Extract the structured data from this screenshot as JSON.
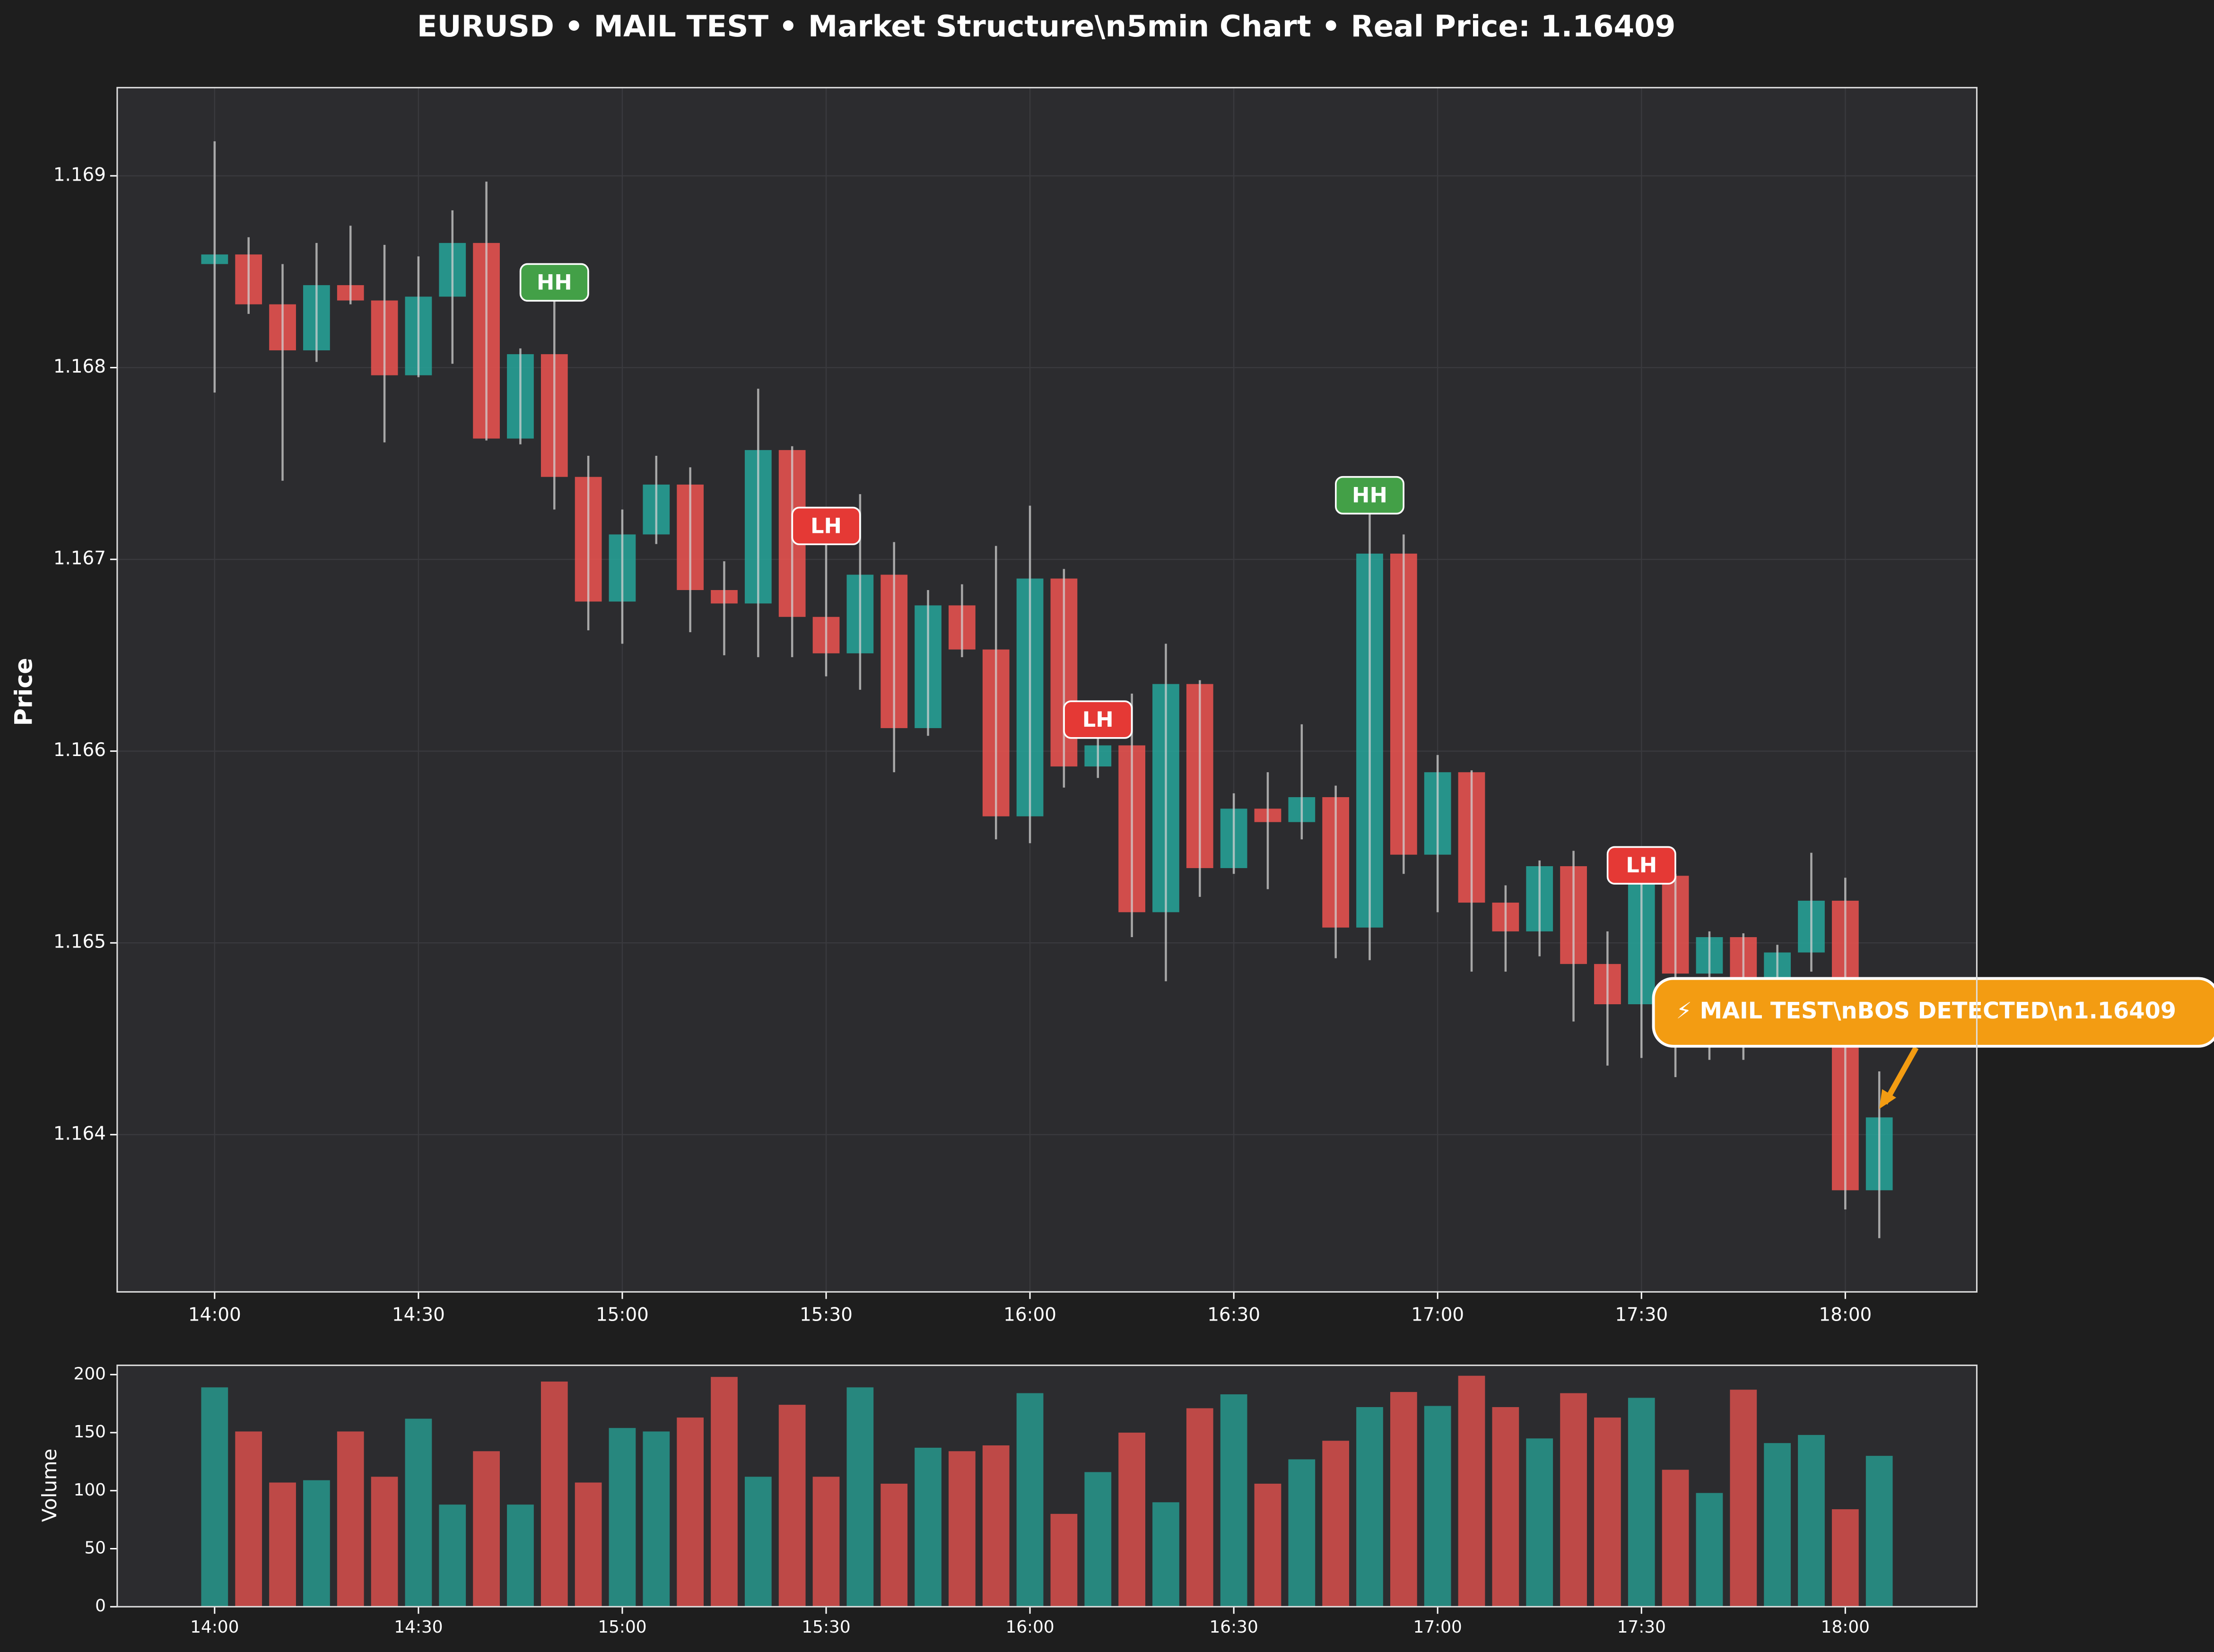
{
  "chart_data": [
    {
      "type": "candlestick",
      "title": "EURUSD • MAIL TEST • Market Structure\\n5min Chart • Real Price: 1.16409",
      "ylabel": "Price",
      "categories": [
        "14:00",
        null,
        null,
        null,
        null,
        null,
        "14:30",
        null,
        null,
        null,
        null,
        null,
        "15:00",
        null,
        null,
        null,
        null,
        null,
        "15:30",
        null,
        null,
        null,
        null,
        null,
        "16:00",
        null,
        null,
        null,
        null,
        null,
        "16:30",
        null,
        null,
        null,
        null,
        null,
        "17:00",
        null,
        null,
        null,
        null,
        null,
        "17:30",
        null,
        null,
        null,
        null,
        null,
        "18:00",
        null
      ],
      "open": [
        1.16854,
        1.16859,
        1.16833,
        1.16809,
        1.16843,
        1.16835,
        1.16796,
        1.16837,
        1.16865,
        1.16763,
        1.16807,
        1.16743,
        1.16678,
        1.16713,
        1.16739,
        1.16684,
        1.16677,
        1.16757,
        1.1667,
        1.16651,
        1.16692,
        1.16612,
        1.16676,
        1.16653,
        1.16566,
        1.1669,
        1.16592,
        1.16603,
        1.16516,
        1.16635,
        1.16539,
        1.1657,
        1.16563,
        1.16576,
        1.16508,
        1.16703,
        1.16546,
        1.16589,
        1.16521,
        1.16506,
        1.1654,
        1.16489,
        1.16468,
        1.16535,
        1.16484,
        1.16503,
        1.16475,
        1.16495,
        1.16522,
        1.16371
      ],
      "high": [
        1.16918,
        1.16868,
        1.16854,
        1.16865,
        1.16874,
        1.16864,
        1.16858,
        1.16882,
        1.16897,
        1.1681,
        1.16854,
        1.16754,
        1.16726,
        1.16754,
        1.16748,
        1.16699,
        1.16789,
        1.16759,
        1.16727,
        1.16734,
        1.16709,
        1.16684,
        1.16687,
        1.16707,
        1.16728,
        1.16695,
        1.16626,
        1.1663,
        1.16656,
        1.16637,
        1.16578,
        1.16589,
        1.16614,
        1.16582,
        1.16743,
        1.16713,
        1.16598,
        1.1659,
        1.1653,
        1.16543,
        1.16548,
        1.16506,
        1.1655,
        1.16536,
        1.16506,
        1.16505,
        1.16499,
        1.16547,
        1.16534,
        1.16433
      ],
      "low": [
        1.16787,
        1.16828,
        1.16741,
        1.16803,
        1.16833,
        1.16761,
        1.16795,
        1.16802,
        1.16762,
        1.1676,
        1.16726,
        1.16663,
        1.16656,
        1.16708,
        1.16662,
        1.1665,
        1.16649,
        1.16649,
        1.16639,
        1.16632,
        1.16589,
        1.16608,
        1.16649,
        1.16554,
        1.16552,
        1.16581,
        1.16586,
        1.16503,
        1.1648,
        1.16524,
        1.16536,
        1.16528,
        1.16554,
        1.16492,
        1.16491,
        1.16536,
        1.16516,
        1.16485,
        1.16485,
        1.16493,
        1.16459,
        1.16436,
        1.1644,
        1.1643,
        1.16439,
        1.16439,
        1.16465,
        1.16485,
        1.16361,
        1.16346
      ],
      "close": [
        1.16859,
        1.16833,
        1.16809,
        1.16843,
        1.16835,
        1.16796,
        1.16837,
        1.16865,
        1.16763,
        1.16807,
        1.16743,
        1.16678,
        1.16713,
        1.16739,
        1.16684,
        1.16677,
        1.16757,
        1.1667,
        1.16651,
        1.16692,
        1.16612,
        1.16676,
        1.16653,
        1.16566,
        1.1669,
        1.16592,
        1.16603,
        1.16516,
        1.16635,
        1.16539,
        1.1657,
        1.16563,
        1.16576,
        1.16508,
        1.16703,
        1.16546,
        1.16589,
        1.16521,
        1.16506,
        1.1654,
        1.16489,
        1.16468,
        1.16535,
        1.16484,
        1.16503,
        1.16475,
        1.16495,
        1.16522,
        1.16371,
        1.16409
      ],
      "up_color": "#26a69a",
      "down_color": "#ef5350",
      "ylim": [
        1.16318,
        1.16946
      ],
      "yticks": [
        1.164,
        1.165,
        1.166,
        1.167,
        1.168,
        1.169
      ],
      "grid": true,
      "annotations": [
        {
          "text": "HH",
          "at": 10,
          "color": "#43a047"
        },
        {
          "text": "LH",
          "at": 18,
          "color": "#e53935"
        },
        {
          "text": "LH",
          "at": 26,
          "color": "#e53935"
        },
        {
          "text": "HH",
          "at": 34,
          "color": "#43a047"
        },
        {
          "text": "LH",
          "at": 42,
          "color": "#e53935"
        }
      ],
      "callout": {
        "text": "⚡ MAIL TEST\\nBOS DETECTED\\n1.16409",
        "at": 49,
        "color": "#f39c12"
      }
    },
    {
      "type": "bar",
      "ylabel": "Volume",
      "categories": [
        "14:00",
        null,
        null,
        null,
        null,
        null,
        "14:30",
        null,
        null,
        null,
        null,
        null,
        "15:00",
        null,
        null,
        null,
        null,
        null,
        "15:30",
        null,
        null,
        null,
        null,
        null,
        "16:00",
        null,
        null,
        null,
        null,
        null,
        "16:30",
        null,
        null,
        null,
        null,
        null,
        "17:00",
        null,
        null,
        null,
        null,
        null,
        "17:30",
        null,
        null,
        null,
        null,
        null,
        "18:00",
        null
      ],
      "values": [
        189,
        151,
        107,
        109,
        151,
        112,
        162,
        88,
        134,
        88,
        194,
        107,
        154,
        151,
        163,
        198,
        112,
        174,
        112,
        189,
        106,
        137,
        134,
        139,
        184,
        80,
        116,
        150,
        90,
        171,
        183,
        106,
        127,
        143,
        172,
        185,
        173,
        199,
        172,
        145,
        184,
        163,
        180,
        118,
        98,
        187,
        141,
        148,
        84,
        130
      ],
      "colors": [
        "#26a69a",
        "#ef5350",
        "#ef5350",
        "#26a69a",
        "#ef5350",
        "#ef5350",
        "#26a69a",
        "#26a69a",
        "#ef5350",
        "#26a69a",
        "#ef5350",
        "#ef5350",
        "#26a69a",
        "#26a69a",
        "#ef5350",
        "#ef5350",
        "#26a69a",
        "#ef5350",
        "#ef5350",
        "#26a69a",
        "#ef5350",
        "#26a69a",
        "#ef5350",
        "#ef5350",
        "#26a69a",
        "#ef5350",
        "#26a69a",
        "#ef5350",
        "#26a69a",
        "#ef5350",
        "#26a69a",
        "#ef5350",
        "#26a69a",
        "#ef5350",
        "#26a69a",
        "#ef5350",
        "#26a69a",
        "#ef5350",
        "#ef5350",
        "#26a69a",
        "#ef5350",
        "#ef5350",
        "#26a69a",
        "#ef5350",
        "#26a69a",
        "#ef5350",
        "#26a69a",
        "#26a69a",
        "#ef5350",
        "#26a69a"
      ],
      "ylim": [
        0,
        208
      ],
      "yticks": [
        0,
        50,
        100,
        150,
        200
      ]
    }
  ]
}
